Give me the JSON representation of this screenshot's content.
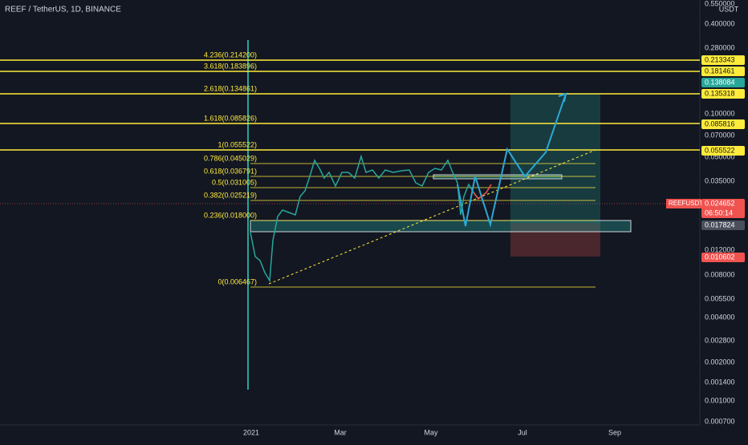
{
  "header": {
    "title": "REEF / TetherUS, 1D, BINANCE"
  },
  "price_axis": {
    "unit": "USDT",
    "labels": [
      "0.550000",
      "0.400000",
      "0.280000",
      "0.100000",
      "0.070000",
      "0.050000",
      "0.035000",
      "0.012000",
      "0.008000",
      "0.005500",
      "0.004000",
      "0.002800",
      "0.002000",
      "0.001400",
      "0.001000",
      "0.000700"
    ]
  },
  "price_tags": [
    {
      "text": "0.213343",
      "color": "#ffeb3b"
    },
    {
      "text": "0.181461",
      "color": "#ffeb3b"
    },
    {
      "text": "0.138084",
      "color": "#26a69a"
    },
    {
      "text": "0.135318",
      "color": "#ffeb3b"
    },
    {
      "text": "0.085816",
      "color": "#ffeb3b"
    },
    {
      "text": "0.055522",
      "color": "#ffeb3b"
    },
    {
      "text": "0.017824",
      "color": "#4a4f5c"
    },
    {
      "text": "0.010602",
      "color": "#ef5350"
    }
  ],
  "symbol_tag": {
    "symbol": "REEFUSDT",
    "price": "0.024652",
    "countdown": "06:50:14"
  },
  "fib_levels": [
    "4.236(0.214200)",
    "3.618(0.183896)",
    "2.618(0.134861)",
    "1.618(0.085826)",
    "1(0.055522)",
    "0.786(0.045029)",
    "0.618(0.036791)",
    "0.5(0.031005)",
    "0.382(0.025219)",
    "0.236(0.018000)",
    "0(0.006467)"
  ],
  "time_axis": [
    "2021",
    "Mar",
    "May",
    "Jul",
    "Sep"
  ]
}
